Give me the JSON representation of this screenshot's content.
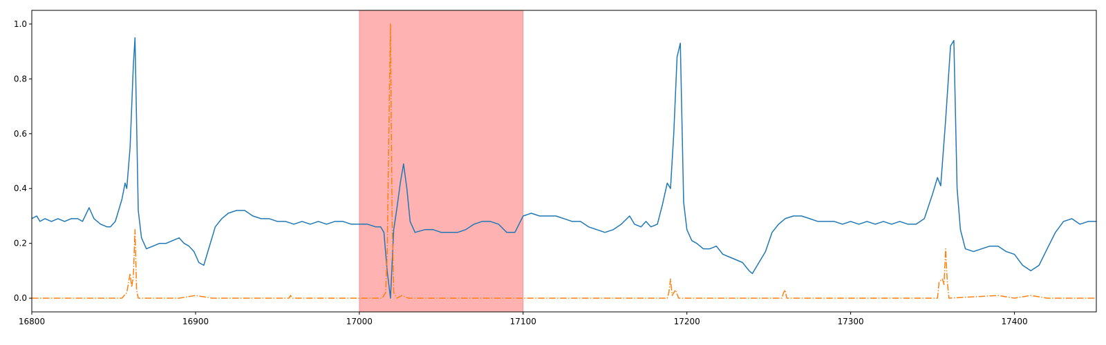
{
  "colors": {
    "signal": "#1f77b4",
    "score": "#ff7f0e",
    "highlight": "#ff0000",
    "axis": "#000000",
    "background": "#ffffff"
  },
  "chart_data": {
    "type": "line",
    "title": "",
    "xlabel": "",
    "ylabel": "",
    "xlim": [
      16800,
      17450
    ],
    "ylim": [
      -0.05,
      1.05
    ],
    "grid": false,
    "legend": "none",
    "x_ticks": [
      16800,
      16900,
      17000,
      17100,
      17200,
      17300,
      17400
    ],
    "x_tick_labels": [
      "16800",
      "16900",
      "17000",
      "17100",
      "17200",
      "17300",
      "17400"
    ],
    "y_ticks": [
      0.0,
      0.2,
      0.4,
      0.6,
      0.8,
      1.0
    ],
    "y_tick_labels": [
      "0.0",
      "0.2",
      "0.4",
      "0.6",
      "0.8",
      "1.0"
    ],
    "highlight_span": {
      "x0": 17000,
      "x1": 17100,
      "opacity": 0.3
    },
    "series": [
      {
        "style": "solid",
        "points": [
          [
            16800,
            0.29
          ],
          [
            16803,
            0.3
          ],
          [
            16805,
            0.28
          ],
          [
            16808,
            0.29
          ],
          [
            16812,
            0.28
          ],
          [
            16816,
            0.29
          ],
          [
            16820,
            0.28
          ],
          [
            16824,
            0.29
          ],
          [
            16828,
            0.29
          ],
          [
            16831,
            0.28
          ],
          [
            16835,
            0.33
          ],
          [
            16838,
            0.29
          ],
          [
            16842,
            0.27
          ],
          [
            16846,
            0.26
          ],
          [
            16848,
            0.26
          ],
          [
            16851,
            0.28
          ],
          [
            16853,
            0.32
          ],
          [
            16855,
            0.36
          ],
          [
            16857,
            0.42
          ],
          [
            16858,
            0.4
          ],
          [
            16860,
            0.55
          ],
          [
            16862,
            0.85
          ],
          [
            16863,
            0.95
          ],
          [
            16865,
            0.32
          ],
          [
            16867,
            0.22
          ],
          [
            16870,
            0.18
          ],
          [
            16874,
            0.19
          ],
          [
            16878,
            0.2
          ],
          [
            16882,
            0.2
          ],
          [
            16886,
            0.21
          ],
          [
            16890,
            0.22
          ],
          [
            16893,
            0.2
          ],
          [
            16896,
            0.19
          ],
          [
            16899,
            0.17
          ],
          [
            16902,
            0.13
          ],
          [
            16905,
            0.12
          ],
          [
            16908,
            0.18
          ],
          [
            16912,
            0.26
          ],
          [
            16916,
            0.29
          ],
          [
            16920,
            0.31
          ],
          [
            16925,
            0.32
          ],
          [
            16930,
            0.32
          ],
          [
            16935,
            0.3
          ],
          [
            16940,
            0.29
          ],
          [
            16945,
            0.29
          ],
          [
            16950,
            0.28
          ],
          [
            16955,
            0.28
          ],
          [
            16960,
            0.27
          ],
          [
            16965,
            0.28
          ],
          [
            16970,
            0.27
          ],
          [
            16975,
            0.28
          ],
          [
            16980,
            0.27
          ],
          [
            16985,
            0.28
          ],
          [
            16990,
            0.28
          ],
          [
            16995,
            0.27
          ],
          [
            17000,
            0.27
          ],
          [
            17005,
            0.27
          ],
          [
            17010,
            0.26
          ],
          [
            17013,
            0.26
          ],
          [
            17015,
            0.24
          ],
          [
            17017,
            0.1
          ],
          [
            17019,
            0.0
          ],
          [
            17021,
            0.25
          ],
          [
            17023,
            0.33
          ],
          [
            17025,
            0.42
          ],
          [
            17027,
            0.49
          ],
          [
            17029,
            0.4
          ],
          [
            17031,
            0.28
          ],
          [
            17034,
            0.24
          ],
          [
            17040,
            0.25
          ],
          [
            17045,
            0.25
          ],
          [
            17050,
            0.24
          ],
          [
            17055,
            0.24
          ],
          [
            17060,
            0.24
          ],
          [
            17065,
            0.25
          ],
          [
            17070,
            0.27
          ],
          [
            17075,
            0.28
          ],
          [
            17080,
            0.28
          ],
          [
            17085,
            0.27
          ],
          [
            17090,
            0.24
          ],
          [
            17095,
            0.24
          ],
          [
            17100,
            0.3
          ],
          [
            17105,
            0.31
          ],
          [
            17110,
            0.3
          ],
          [
            17115,
            0.3
          ],
          [
            17120,
            0.3
          ],
          [
            17125,
            0.29
          ],
          [
            17130,
            0.28
          ],
          [
            17135,
            0.28
          ],
          [
            17140,
            0.26
          ],
          [
            17145,
            0.25
          ],
          [
            17150,
            0.24
          ],
          [
            17155,
            0.25
          ],
          [
            17160,
            0.27
          ],
          [
            17165,
            0.3
          ],
          [
            17168,
            0.27
          ],
          [
            17172,
            0.26
          ],
          [
            17175,
            0.28
          ],
          [
            17178,
            0.26
          ],
          [
            17182,
            0.27
          ],
          [
            17185,
            0.34
          ],
          [
            17188,
            0.42
          ],
          [
            17190,
            0.4
          ],
          [
            17192,
            0.6
          ],
          [
            17194,
            0.88
          ],
          [
            17196,
            0.93
          ],
          [
            17198,
            0.35
          ],
          [
            17200,
            0.25
          ],
          [
            17203,
            0.21
          ],
          [
            17206,
            0.2
          ],
          [
            17210,
            0.18
          ],
          [
            17214,
            0.18
          ],
          [
            17218,
            0.19
          ],
          [
            17222,
            0.16
          ],
          [
            17226,
            0.15
          ],
          [
            17230,
            0.14
          ],
          [
            17234,
            0.13
          ],
          [
            17238,
            0.1
          ],
          [
            17240,
            0.09
          ],
          [
            17244,
            0.13
          ],
          [
            17248,
            0.17
          ],
          [
            17252,
            0.24
          ],
          [
            17256,
            0.27
          ],
          [
            17260,
            0.29
          ],
          [
            17265,
            0.3
          ],
          [
            17270,
            0.3
          ],
          [
            17275,
            0.29
          ],
          [
            17280,
            0.28
          ],
          [
            17285,
            0.28
          ],
          [
            17290,
            0.28
          ],
          [
            17295,
            0.27
          ],
          [
            17300,
            0.28
          ],
          [
            17305,
            0.27
          ],
          [
            17310,
            0.28
          ],
          [
            17315,
            0.27
          ],
          [
            17320,
            0.28
          ],
          [
            17325,
            0.27
          ],
          [
            17330,
            0.28
          ],
          [
            17335,
            0.27
          ],
          [
            17340,
            0.27
          ],
          [
            17345,
            0.29
          ],
          [
            17350,
            0.38
          ],
          [
            17353,
            0.44
          ],
          [
            17355,
            0.41
          ],
          [
            17358,
            0.65
          ],
          [
            17361,
            0.92
          ],
          [
            17363,
            0.94
          ],
          [
            17365,
            0.4
          ],
          [
            17367,
            0.25
          ],
          [
            17370,
            0.18
          ],
          [
            17375,
            0.17
          ],
          [
            17380,
            0.18
          ],
          [
            17385,
            0.19
          ],
          [
            17390,
            0.19
          ],
          [
            17395,
            0.17
          ],
          [
            17400,
            0.16
          ],
          [
            17405,
            0.12
          ],
          [
            17410,
            0.1
          ],
          [
            17415,
            0.12
          ],
          [
            17420,
            0.18
          ],
          [
            17425,
            0.24
          ],
          [
            17430,
            0.28
          ],
          [
            17435,
            0.29
          ],
          [
            17440,
            0.27
          ],
          [
            17445,
            0.28
          ],
          [
            17450,
            0.28
          ]
        ]
      },
      {
        "style": "dashdot",
        "points": [
          [
            16800,
            0.0
          ],
          [
            16830,
            0.0
          ],
          [
            16855,
            0.0
          ],
          [
            16858,
            0.02
          ],
          [
            16860,
            0.09
          ],
          [
            16861,
            0.04
          ],
          [
            16862,
            0.08
          ],
          [
            16863,
            0.25
          ],
          [
            16864,
            0.03
          ],
          [
            16865,
            0.0
          ],
          [
            16890,
            0.0
          ],
          [
            16900,
            0.01
          ],
          [
            16910,
            0.0
          ],
          [
            16957,
            0.0
          ],
          [
            16958,
            0.01
          ],
          [
            16959,
            0.0
          ],
          [
            17014,
            0.0
          ],
          [
            17016,
            0.02
          ],
          [
            17017,
            0.15
          ],
          [
            17018,
            0.6
          ],
          [
            17019,
            1.0
          ],
          [
            17020,
            0.3
          ],
          [
            17021,
            0.02
          ],
          [
            17023,
            0.0
          ],
          [
            17026,
            0.01
          ],
          [
            17030,
            0.0
          ],
          [
            17188,
            0.0
          ],
          [
            17189,
            0.02
          ],
          [
            17190,
            0.07
          ],
          [
            17191,
            0.01
          ],
          [
            17193,
            0.03
          ],
          [
            17195,
            0.0
          ],
          [
            17258,
            0.0
          ],
          [
            17259,
            0.02
          ],
          [
            17260,
            0.03
          ],
          [
            17261,
            0.0
          ],
          [
            17353,
            0.0
          ],
          [
            17354,
            0.06
          ],
          [
            17356,
            0.07
          ],
          [
            17357,
            0.05
          ],
          [
            17358,
            0.18
          ],
          [
            17359,
            0.06
          ],
          [
            17360,
            0.0
          ],
          [
            17390,
            0.01
          ],
          [
            17400,
            0.0
          ],
          [
            17410,
            0.01
          ],
          [
            17420,
            0.0
          ],
          [
            17450,
            0.0
          ]
        ]
      }
    ]
  }
}
